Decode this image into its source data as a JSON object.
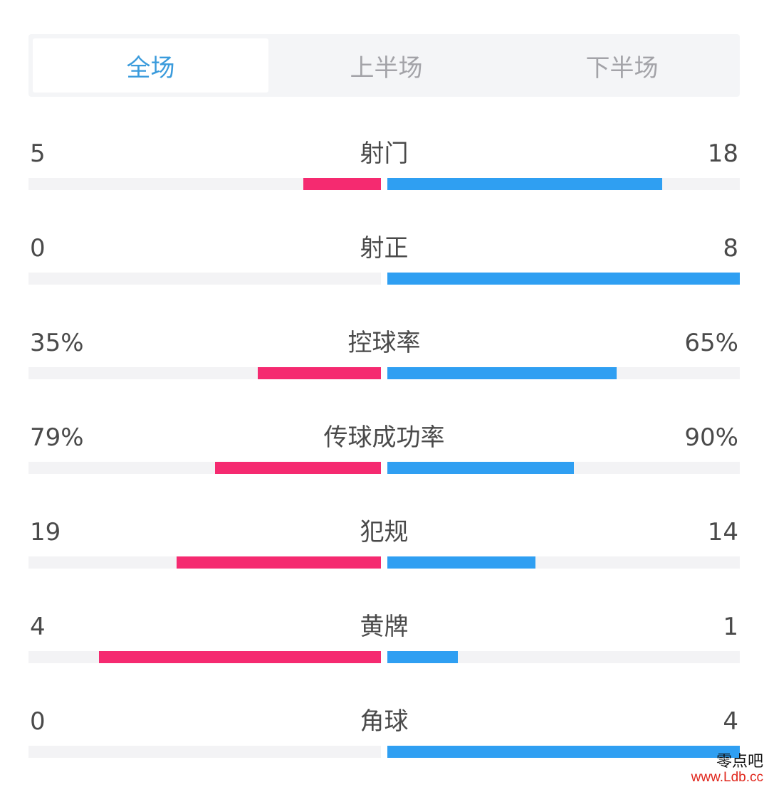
{
  "tabs": [
    {
      "label": "全场",
      "active": true
    },
    {
      "label": "上半场",
      "active": false
    },
    {
      "label": "下半场",
      "active": false
    }
  ],
  "colors": {
    "active_tab": "#3a9bdc",
    "inactive_tab": "#a3a3a8",
    "home_bar": "#f52a70",
    "away_bar": "#2f9ff2",
    "track": "#f3f3f5",
    "text": "#4a4a4a"
  },
  "stats": [
    {
      "label": "射门",
      "home": "5",
      "away": "18",
      "home_fill": 0.22,
      "away_fill": 0.78
    },
    {
      "label": "射正",
      "home": "0",
      "away": "8",
      "home_fill": 0.0,
      "away_fill": 1.0
    },
    {
      "label": "控球率",
      "home": "35%",
      "away": "65%",
      "home_fill": 0.35,
      "away_fill": 0.65
    },
    {
      "label": "传球成功率",
      "home": "79%",
      "away": "90%",
      "home_fill": 0.47,
      "away_fill": 0.53
    },
    {
      "label": "犯规",
      "home": "19",
      "away": "14",
      "home_fill": 0.58,
      "away_fill": 0.42
    },
    {
      "label": "黄牌",
      "home": "4",
      "away": "1",
      "home_fill": 0.8,
      "away_fill": 0.2
    },
    {
      "label": "角球",
      "home": "0",
      "away": "4",
      "home_fill": 0.0,
      "away_fill": 1.0
    }
  ],
  "watermark": {
    "name": "零点吧",
    "url": "www.Ldb.cc"
  }
}
